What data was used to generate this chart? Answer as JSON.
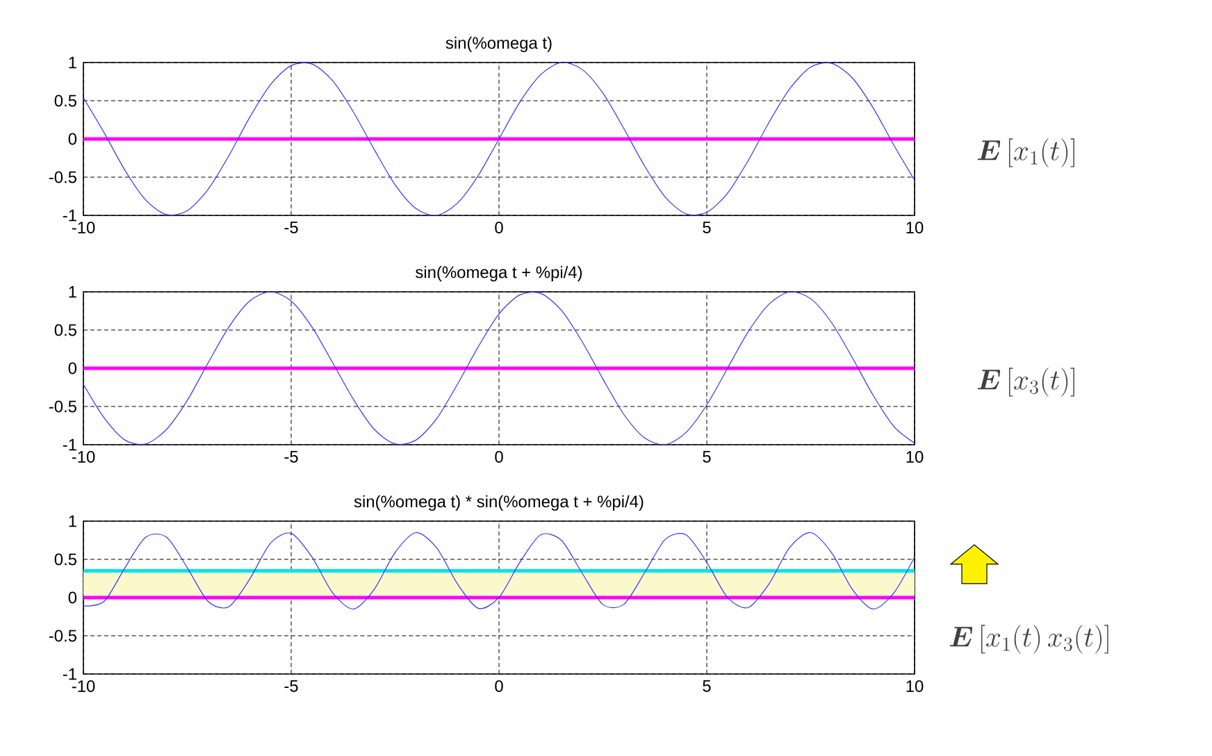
{
  "chart_data": [
    {
      "type": "line",
      "title": "sin(%omega t)",
      "x": [
        -10,
        -9.5,
        -9,
        -8.5,
        -8,
        -7.5,
        -7,
        -6.5,
        -6,
        -5.5,
        -5,
        -4.5,
        -4,
        -3.5,
        -3,
        -2.5,
        -2,
        -1.5,
        -1,
        -0.5,
        0,
        0.5,
        1,
        1.5,
        2,
        2.5,
        3,
        3.5,
        4,
        4.5,
        5,
        5.5,
        6,
        6.5,
        7,
        7.5,
        8,
        8.5,
        9,
        9.5,
        10
      ],
      "series": [
        {
          "color": "#3333ff",
          "values": [
            0.54,
            0.08,
            -0.41,
            -0.8,
            -0.99,
            -0.94,
            -0.66,
            -0.22,
            0.28,
            0.71,
            0.96,
            0.98,
            0.76,
            0.35,
            -0.14,
            -0.6,
            -0.91,
            -1.0,
            -0.84,
            -0.48,
            0,
            0.48,
            0.84,
            1.0,
            0.91,
            0.6,
            0.14,
            -0.35,
            -0.76,
            -0.98,
            -0.96,
            -0.71,
            -0.28,
            0.22,
            0.66,
            0.94,
            0.99,
            0.8,
            0.41,
            -0.08,
            -0.54
          ]
        }
      ],
      "xlim": [
        -10,
        10
      ],
      "ylim": [
        -1,
        1
      ],
      "xticks": [
        -10,
        -5,
        0,
        5,
        10
      ],
      "yticks": [
        -1,
        -0.5,
        0,
        0.5,
        1
      ],
      "grid": true,
      "ref_lines": [
        {
          "axis": "y",
          "value": 0,
          "color": "#ff00ff"
        }
      ],
      "annotations": [
        "\\boldsymbol{E}\\left[x_1(t)\\right]"
      ]
    },
    {
      "type": "line",
      "title": "sin(%omega t + %pi/4)",
      "x": [
        -10,
        -9.5,
        -9,
        -8.5,
        -8,
        -7.5,
        -7,
        -6.5,
        -6,
        -5.5,
        -5,
        -4.5,
        -4,
        -3.5,
        -3,
        -2.5,
        -2,
        -1.5,
        -1,
        -0.5,
        0,
        0.5,
        1,
        1.5,
        2,
        2.5,
        3,
        3.5,
        4,
        4.5,
        5,
        5.5,
        6,
        6.5,
        7,
        7.5,
        8,
        8.5,
        9,
        9.5,
        10
      ],
      "series": [
        {
          "color": "#3333ff",
          "values": [
            -0.21,
            -0.65,
            -0.94,
            -0.99,
            -0.8,
            -0.42,
            0.07,
            0.54,
            0.88,
            1.0,
            0.88,
            0.54,
            0.07,
            -0.41,
            -0.8,
            -0.99,
            -0.94,
            -0.66,
            -0.21,
            0.28,
            0.71,
            0.96,
            0.98,
            0.76,
            0.35,
            -0.14,
            -0.6,
            -0.91,
            -1.0,
            -0.84,
            -0.48,
            0,
            0.48,
            0.84,
            1.0,
            0.91,
            0.6,
            0.14,
            -0.35,
            -0.76,
            -0.98
          ]
        }
      ],
      "xlim": [
        -10,
        10
      ],
      "ylim": [
        -1,
        1
      ],
      "xticks": [
        -10,
        -5,
        0,
        5,
        10
      ],
      "yticks": [
        -1,
        -0.5,
        0,
        0.5,
        1
      ],
      "grid": true,
      "ref_lines": [
        {
          "axis": "y",
          "value": 0,
          "color": "#ff00ff"
        }
      ],
      "annotations": [
        "\\boldsymbol{E}\\left[x_3(t)\\right]"
      ]
    },
    {
      "type": "line",
      "title": "sin(%omega t) * sin(%omega t + %pi/4)",
      "x": [
        -10,
        -9.5,
        -9,
        -8.5,
        -8,
        -7.5,
        -7,
        -6.5,
        -6,
        -5.5,
        -5,
        -4.5,
        -4,
        -3.5,
        -3,
        -2.5,
        -2,
        -1.5,
        -1,
        -0.5,
        0,
        0.5,
        1,
        1.5,
        2,
        2.5,
        3,
        3.5,
        4,
        4.5,
        5,
        5.5,
        6,
        6.5,
        7,
        7.5,
        8,
        8.5,
        9,
        9.5,
        10
      ],
      "series": [
        {
          "color": "#3333ff",
          "values": [
            -0.11,
            -0.05,
            0.39,
            0.79,
            0.79,
            0.39,
            -0.05,
            -0.12,
            0.24,
            0.71,
            0.84,
            0.53,
            0.06,
            -0.15,
            0.11,
            0.59,
            0.85,
            0.65,
            0.18,
            -0.14,
            0,
            0.46,
            0.82,
            0.75,
            0.32,
            -0.09,
            -0.09,
            0.32,
            0.76,
            0.82,
            0.46,
            0,
            -0.13,
            0.18,
            0.66,
            0.85,
            0.59,
            0.11,
            -0.15,
            0.06,
            0.53
          ]
        }
      ],
      "xlim": [
        -10,
        10
      ],
      "ylim": [
        -1,
        1
      ],
      "xticks": [
        -10,
        -5,
        0,
        5,
        10
      ],
      "yticks": [
        -1,
        -0.5,
        0,
        0.5,
        1
      ],
      "grid": true,
      "ref_lines": [
        {
          "axis": "y",
          "value": 0,
          "color": "#ff00ff"
        },
        {
          "axis": "y",
          "value": 0.35,
          "color": "#00e5e5"
        }
      ],
      "bands": [
        {
          "axis": "y",
          "from": 0,
          "to": 0.35,
          "color": "#fbf8cc"
        }
      ],
      "annotations": [
        "\\boldsymbol{E}\\left[x_1(t)\\,x_3(t)\\right]"
      ]
    }
  ]
}
